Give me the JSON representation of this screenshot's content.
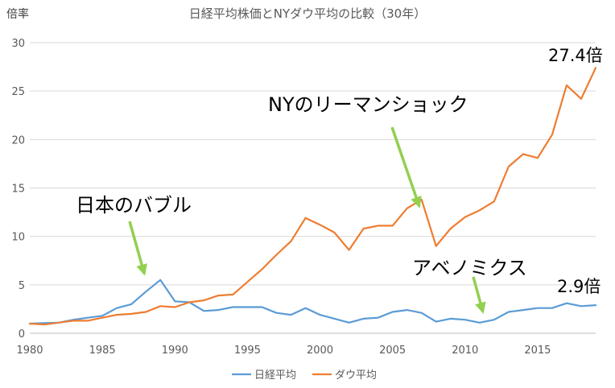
{
  "chart_data": {
    "type": "line",
    "title": "日経平均株価とNYダウ平均の比較（30年）",
    "ylabel": "倍率",
    "xlabel": "",
    "xlim": [
      1980,
      2019
    ],
    "ylim": [
      0,
      30
    ],
    "x_ticks": [
      1980,
      1985,
      1990,
      1995,
      2000,
      2005,
      2010,
      2015
    ],
    "y_ticks": [
      0,
      5,
      10,
      15,
      20,
      25,
      30
    ],
    "grid": true,
    "legend_position": "bottom",
    "x": [
      1980,
      1981,
      1982,
      1983,
      1984,
      1985,
      1986,
      1987,
      1988,
      1989,
      1990,
      1991,
      1992,
      1993,
      1994,
      1995,
      1996,
      1997,
      1998,
      1999,
      2000,
      2001,
      2002,
      2003,
      2004,
      2005,
      2006,
      2007,
      2008,
      2009,
      2010,
      2011,
      2012,
      2013,
      2014,
      2015,
      2016,
      2017,
      2018,
      2019
    ],
    "series": [
      {
        "name": "日経平均",
        "color": "#5b9bd5",
        "values": [
          1.0,
          1.05,
          1.1,
          1.4,
          1.6,
          1.8,
          2.6,
          3.0,
          4.3,
          5.5,
          3.3,
          3.2,
          2.3,
          2.4,
          2.7,
          2.7,
          2.7,
          2.1,
          1.9,
          2.6,
          1.9,
          1.5,
          1.1,
          1.5,
          1.6,
          2.2,
          2.4,
          2.1,
          1.2,
          1.5,
          1.4,
          1.1,
          1.4,
          2.2,
          2.4,
          2.6,
          2.6,
          3.1,
          2.8,
          2.9
        ]
      },
      {
        "name": "ダウ平均",
        "color": "#ed7d31",
        "values": [
          1.0,
          0.9,
          1.1,
          1.3,
          1.3,
          1.6,
          1.9,
          2.0,
          2.2,
          2.8,
          2.7,
          3.2,
          3.4,
          3.9,
          4.0,
          5.3,
          6.6,
          8.1,
          9.5,
          11.9,
          11.2,
          10.4,
          8.6,
          10.8,
          11.1,
          11.1,
          12.9,
          13.8,
          9.0,
          10.8,
          12.0,
          12.7,
          13.6,
          17.2,
          18.5,
          18.1,
          20.5,
          25.6,
          24.2,
          27.4
        ]
      }
    ],
    "annotations": [
      {
        "text": "日本のバブル",
        "points_to_year": 1989
      },
      {
        "text": "NYのリーマンショック",
        "points_to_year": 2007
      },
      {
        "text": "アベノミクス",
        "points_to_year": 2012
      },
      {
        "text": "27.4倍",
        "series": "ダウ平均",
        "year": 2019
      },
      {
        "text": "2.9倍",
        "series": "日経平均",
        "year": 2019
      }
    ],
    "annotation_arrow_color": "#92d050"
  }
}
